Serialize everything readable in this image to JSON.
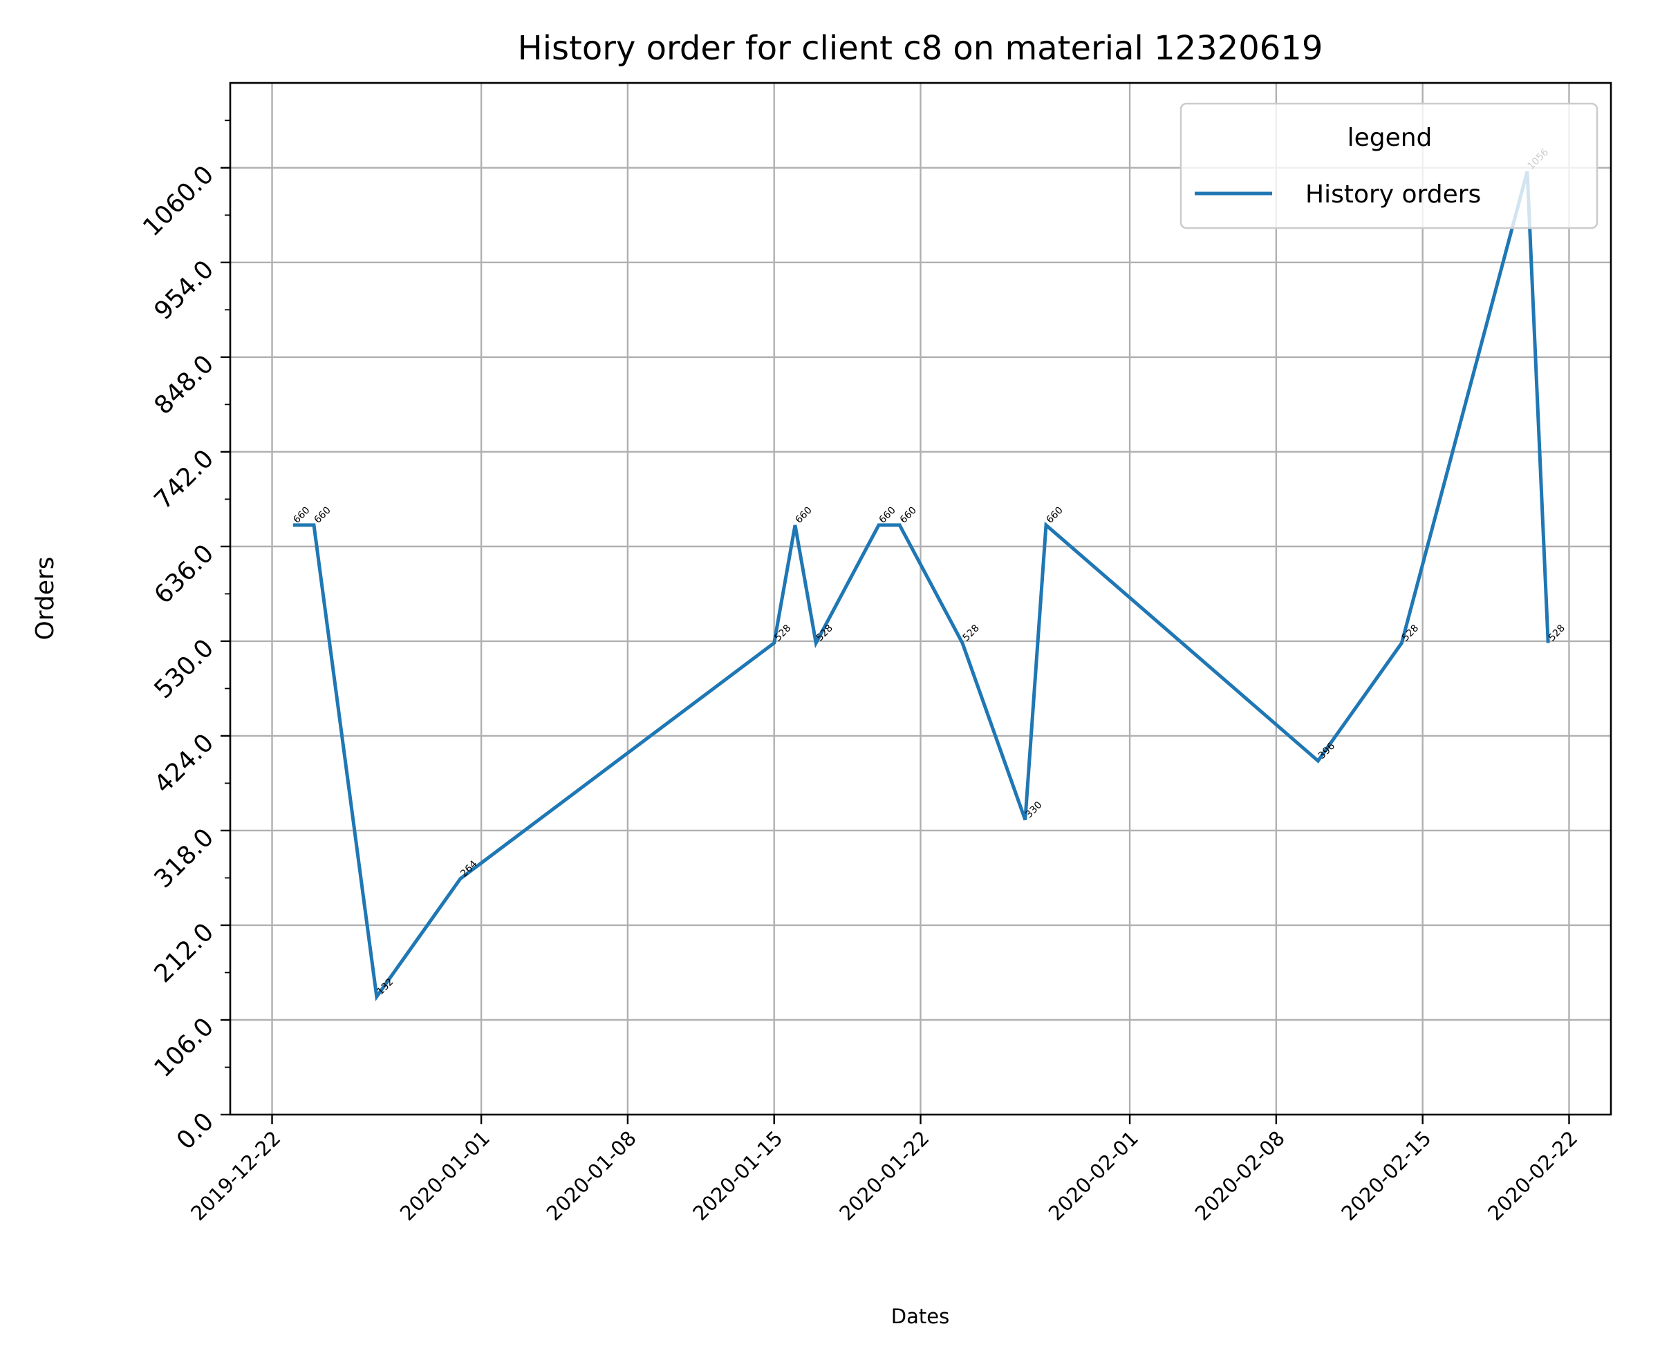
{
  "chart_data": {
    "type": "line",
    "title": "History order for client c8 on material 12320619",
    "xlabel": "Dates",
    "ylabel": "Orders",
    "x_ticks": [
      "2019-12-22",
      "2020-01-01",
      "2020-01-08",
      "2020-01-15",
      "2020-01-22",
      "2020-02-01",
      "2020-02-08",
      "2020-02-15",
      "2020-02-22"
    ],
    "y_ticks": [
      "0.0",
      "106.0",
      "212.0",
      "318.0",
      "424.0",
      "530.0",
      "636.0",
      "742.0",
      "848.0",
      "954.0",
      "1060.0"
    ],
    "ylim": [
      0,
      1155
    ],
    "xlim": [
      "2019-12-20",
      "2020-02-24"
    ],
    "grid": true,
    "legend": {
      "title": "legend",
      "position": "upper right"
    },
    "colors": {
      "line": "#1f77b4",
      "grid": "#b0b0b0"
    },
    "series": [
      {
        "name": "History orders",
        "x": [
          "2019-12-23",
          "2019-12-24",
          "2019-12-27",
          "2019-12-31",
          "2020-01-15",
          "2020-01-16",
          "2020-01-17",
          "2020-01-20",
          "2020-01-21",
          "2020-01-24",
          "2020-01-27",
          "2020-01-28",
          "2020-02-10",
          "2020-02-14",
          "2020-02-20",
          "2020-02-21"
        ],
        "values": [
          660,
          660,
          132,
          264,
          528,
          660,
          528,
          660,
          660,
          528,
          330,
          660,
          396,
          528,
          1056,
          528
        ],
        "labels": [
          "660",
          "660",
          "132",
          "264",
          "528",
          "660",
          "528",
          "660",
          "660",
          "528",
          "330",
          "660",
          "396",
          "528",
          "1056",
          "528"
        ]
      }
    ]
  }
}
